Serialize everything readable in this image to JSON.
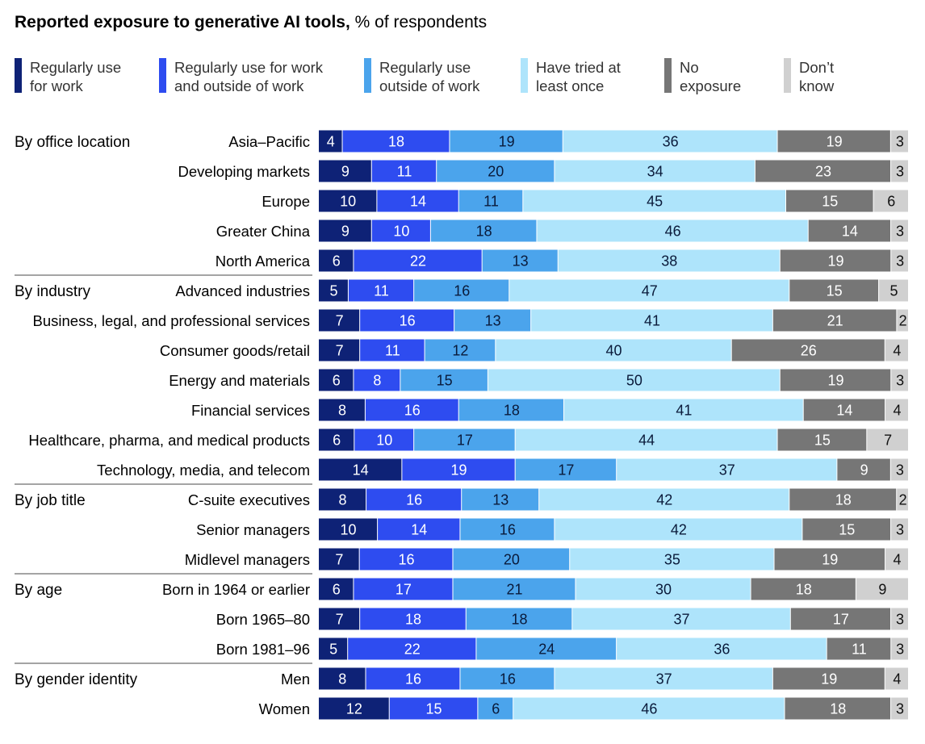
{
  "title_bold": "Reported exposure to generative AI tools,",
  "title_rest": " % of respondents",
  "chart_data": {
    "type": "bar",
    "orientation": "horizontal",
    "stacked": true,
    "normalized_100": true,
    "series": [
      {
        "name": "Regularly use\nfor work",
        "color": "#0e2276"
      },
      {
        "name": "Regularly use for work\nand outside of work",
        "color": "#2e4cf0"
      },
      {
        "name": "Regularly use\noutside of work",
        "color": "#4ba4ec"
      },
      {
        "name": "Have tried at\nleast once",
        "color": "#aee4fb"
      },
      {
        "name": "No\nexposure",
        "color": "#767676"
      },
      {
        "name": "Don’t\nknow",
        "color": "#d0d0d0"
      }
    ],
    "groups": [
      {
        "label": "By office location",
        "rows": [
          {
            "label": "Asia–Pacific",
            "values": [
              4,
              18,
              19,
              36,
              19,
              3
            ]
          },
          {
            "label": "Developing markets",
            "values": [
              9,
              11,
              20,
              34,
              23,
              3
            ]
          },
          {
            "label": "Europe",
            "values": [
              10,
              14,
              11,
              45,
              15,
              6
            ]
          },
          {
            "label": "Greater China",
            "values": [
              9,
              10,
              18,
              46,
              14,
              3
            ]
          },
          {
            "label": "North America",
            "values": [
              6,
              22,
              13,
              38,
              19,
              3
            ]
          }
        ]
      },
      {
        "label": "By industry",
        "rows": [
          {
            "label": "Advanced industries",
            "values": [
              5,
              11,
              16,
              47,
              15,
              5
            ]
          },
          {
            "label": "Business, legal, and professional services",
            "values": [
              7,
              16,
              13,
              41,
              21,
              2
            ]
          },
          {
            "label": "Consumer goods/retail",
            "values": [
              7,
              11,
              12,
              40,
              26,
              4
            ]
          },
          {
            "label": "Energy and materials",
            "values": [
              6,
              8,
              15,
              50,
              19,
              3
            ]
          },
          {
            "label": "Financial services",
            "values": [
              8,
              16,
              18,
              41,
              14,
              4
            ]
          },
          {
            "label": "Healthcare, pharma, and medical products",
            "values": [
              6,
              10,
              17,
              44,
              15,
              7
            ]
          },
          {
            "label": "Technology, media, and telecom",
            "values": [
              14,
              19,
              17,
              37,
              9,
              3
            ]
          }
        ]
      },
      {
        "label": "By job title",
        "rows": [
          {
            "label": "C-suite executives",
            "values": [
              8,
              16,
              13,
              42,
              18,
              2
            ]
          },
          {
            "label": "Senior managers",
            "values": [
              10,
              14,
              16,
              42,
              15,
              3
            ]
          },
          {
            "label": "Midlevel managers",
            "values": [
              7,
              16,
              20,
              35,
              19,
              4
            ]
          }
        ]
      },
      {
        "label": "By age",
        "rows": [
          {
            "label": "Born in 1964 or earlier",
            "values": [
              6,
              17,
              21,
              30,
              18,
              9
            ]
          },
          {
            "label": "Born 1965–80",
            "values": [
              7,
              18,
              18,
              37,
              17,
              3
            ]
          },
          {
            "label": "Born 1981–96",
            "values": [
              5,
              22,
              24,
              36,
              11,
              3
            ]
          }
        ]
      },
      {
        "label": "By gender identity",
        "rows": [
          {
            "label": "Men",
            "values": [
              8,
              16,
              16,
              37,
              19,
              4
            ]
          },
          {
            "label": "Women",
            "values": [
              12,
              15,
              6,
              46,
              18,
              3
            ]
          }
        ]
      }
    ]
  }
}
